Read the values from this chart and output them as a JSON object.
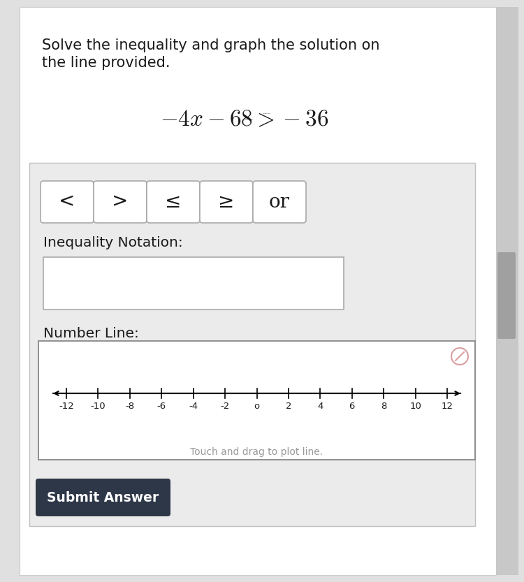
{
  "title_line1": "Solve the inequality and graph the solution on",
  "title_line2": "the line provided.",
  "buttons": [
    "<",
    ">",
    "≤",
    "≥",
    "or"
  ],
  "inequality_notation_label": "Inequality Notation:",
  "number_line_label": "Number Line:",
  "number_line_ticks": [
    -12,
    -10,
    -8,
    -6,
    -4,
    -2,
    0,
    2,
    4,
    6,
    8,
    10,
    12
  ],
  "touch_drag_text": "Touch and drag to plot line.",
  "submit_text": "Submit Answer",
  "outer_bg": "#e0e0e0",
  "page_bg": "#ffffff",
  "gray_box_bg": "#ebebeb",
  "white": "#ffffff",
  "dark_btn_bg": "#2d3748",
  "dark_btn_text": "#ffffff",
  "border_color": "#aaaaaa",
  "text_color": "#1a1a1a",
  "gray_text": "#999999",
  "cancel_color": "#d9a0a0",
  "scrollbar_color": "#c0c0c0"
}
